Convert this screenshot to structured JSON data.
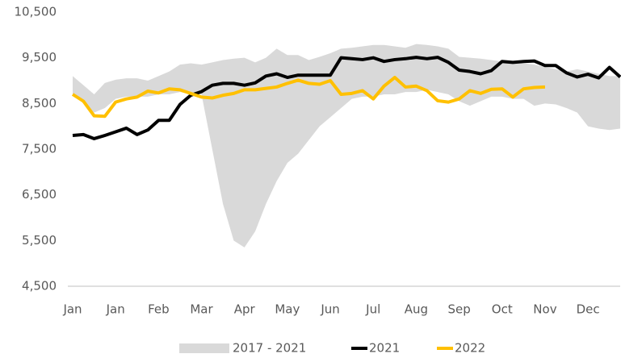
{
  "chart_data": {
    "type": "line",
    "categories": [
      "Jan",
      null,
      null,
      null,
      "Jan",
      null,
      null,
      null,
      "Feb",
      null,
      null,
      null,
      "Mar",
      null,
      null,
      null,
      "Apr",
      null,
      null,
      null,
      "May",
      null,
      null,
      null,
      "Jun",
      null,
      null,
      null,
      "Jul",
      null,
      null,
      null,
      "Aug",
      null,
      null,
      null,
      "Sep",
      null,
      null,
      null,
      "Oct",
      null,
      null,
      null,
      "Nov",
      null,
      null,
      null,
      "Dec",
      null,
      null,
      null
    ],
    "series": [
      {
        "name": "2017 - 2021",
        "color": "#d9d9d9",
        "high": [
          9100,
          8900,
          8700,
          8950,
          9020,
          9050,
          9050,
          9000,
          9100,
          9200,
          9350,
          9380,
          9350,
          9400,
          9450,
          9480,
          9500,
          9400,
          9500,
          9700,
          9560,
          9560,
          9450,
          9520,
          9600,
          9700,
          9720,
          9750,
          9780,
          9780,
          9750,
          9720,
          9800,
          9780,
          9750,
          9700,
          9520,
          9500,
          9480,
          9450,
          9420,
          9400,
          9380,
          9350,
          9300,
          9250,
          9200,
          9250,
          9200,
          9150,
          9100,
          9100
        ],
        "low": [
          8700,
          8500,
          8300,
          8400,
          8600,
          8650,
          8650,
          8650,
          8700,
          8700,
          8750,
          8700,
          8700,
          7500,
          6300,
          5500,
          5350,
          5700,
          6300,
          6800,
          7200,
          7400,
          7700,
          8000,
          8200,
          8400,
          8600,
          8650,
          8650,
          8700,
          8700,
          8750,
          8750,
          8800,
          8750,
          8700,
          8550,
          8450,
          8550,
          8650,
          8650,
          8600,
          8600,
          8450,
          8500,
          8480,
          8400,
          8300,
          8000,
          7950,
          7920,
          7950
        ]
      },
      {
        "name": "2021",
        "color": "#000000",
        "values": [
          7800,
          7820,
          7730,
          7800,
          7880,
          7960,
          7820,
          7920,
          8130,
          8130,
          8480,
          8680,
          8760,
          8900,
          8940,
          8940,
          8900,
          8950,
          9100,
          9150,
          9070,
          9120,
          9120,
          9120,
          9120,
          9500,
          9480,
          9460,
          9500,
          9420,
          9460,
          9480,
          9510,
          9480,
          9510,
          9400,
          9230,
          9200,
          9150,
          9220,
          9420,
          9400,
          9420,
          9430,
          9330,
          9330,
          9170,
          9080,
          9140,
          9060,
          9290,
          9080
        ]
      },
      {
        "name": "2022",
        "color": "#ffc000",
        "values": [
          8700,
          8550,
          8230,
          8220,
          8530,
          8600,
          8640,
          8770,
          8730,
          8820,
          8800,
          8720,
          8640,
          8620,
          8680,
          8720,
          8800,
          8800,
          8830,
          8860,
          8940,
          9010,
          8940,
          8920,
          9000,
          8700,
          8720,
          8780,
          8600,
          8880,
          9070,
          8860,
          8880,
          8780,
          8560,
          8530,
          8600,
          8780,
          8720,
          8810,
          8820,
          8640,
          8820,
          8850,
          8860,
          null,
          null,
          null,
          null,
          null,
          null,
          null
        ]
      }
    ],
    "ylim": [
      4500,
      10500
    ],
    "yticks": [
      {
        "value": 4500,
        "label": "4,500"
      },
      {
        "value": 5500,
        "label": "5,500"
      },
      {
        "value": 6500,
        "label": "6,500"
      },
      {
        "value": 7500,
        "label": "7,500"
      },
      {
        "value": 8500,
        "label": "8,500"
      },
      {
        "value": 9500,
        "label": "9,500"
      },
      {
        "value": 10500,
        "label": "10,500"
      }
    ],
    "grid": false,
    "legend": "bottom"
  }
}
